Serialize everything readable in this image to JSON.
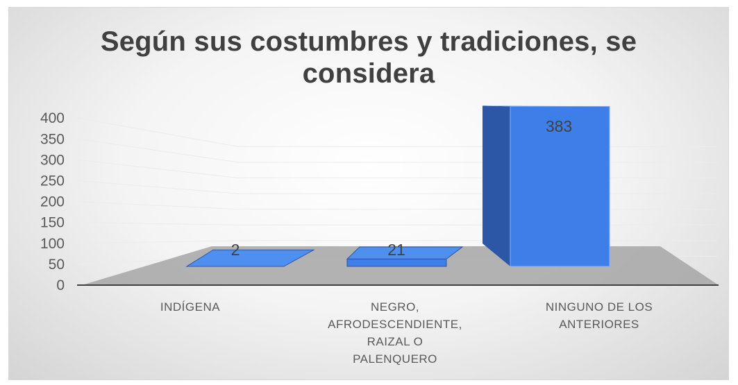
{
  "chart_data": {
    "type": "bar",
    "title": "Según sus costumbres y tradiciones, se considera",
    "title_lines": [
      "Según sus costumbres y tradiciones, se",
      "considera"
    ],
    "categories": [
      "INDÍGENA",
      "NEGRO, AFRODESCENDIENTE, RAIZAL O PALENQUERO",
      "NINGUNO DE LOS ANTERIORES"
    ],
    "category_lines": [
      [
        "INDÍGENA"
      ],
      [
        "NEGRO,",
        "AFRODESCENDIENTE,",
        "RAIZAL O",
        "PALENQUERO"
      ],
      [
        "NINGUNO  DE  LOS",
        "ANTERIORES"
      ]
    ],
    "values": [
      2,
      21,
      383
    ],
    "data_labels": [
      "2",
      "21",
      "383"
    ],
    "yticks": [
      0,
      50,
      100,
      150,
      200,
      250,
      300,
      350,
      400
    ],
    "ylim": [
      0,
      400
    ],
    "xlabel": "",
    "ylabel": "",
    "bar_color": "#3d7ee8",
    "bar_side_color": "#2c56a6",
    "bar_top_color": "#4f8ff0",
    "floor_color": "#a6a6a6",
    "grid": true,
    "legend": "none",
    "style": "3d-column"
  }
}
